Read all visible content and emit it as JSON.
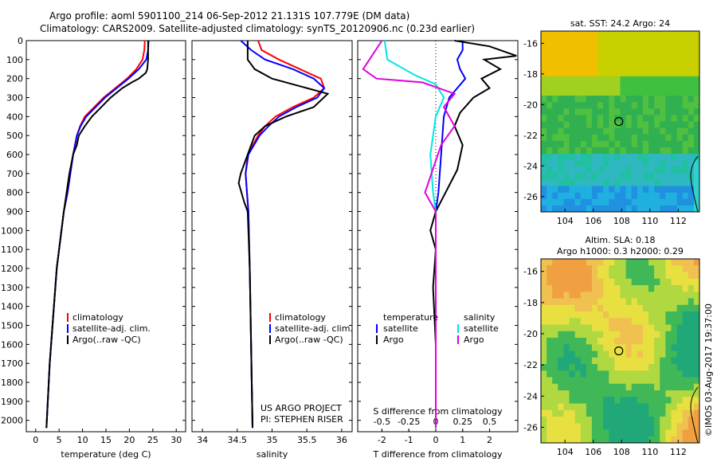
{
  "header": {
    "line1": "Argo profile: aoml 5901100_214 06-Sep-2012 21.131S 107.779E (DM data)",
    "line2": "Climatology: CARS2009. Satellite-adjusted climatology: synTS_20120906.nc (0.23d earlier)"
  },
  "panels": {
    "temperature": {
      "xlabel": "temperature (deg C)",
      "legend": [
        "climatology",
        "satellite-adj. clim.",
        "Argo(..raw -QC)"
      ]
    },
    "salinity": {
      "xlabel": "salinity",
      "legend": [
        "climatology",
        "satellite-adj. clim.",
        "Argo(..raw -QC)"
      ],
      "credit1": "US ARGO PROJECT",
      "credit2": "PI: STEPHEN RISER"
    },
    "difference": {
      "top_title": "S difference from climatology",
      "xlabel": "T difference from climatology",
      "legend_t_title": "temperature",
      "legend_s_title": "salinity",
      "legend_t": [
        "satellite",
        "Argo"
      ],
      "legend_s": [
        "satellite",
        "Argo"
      ]
    }
  },
  "maps": {
    "sst": {
      "title": "sat. SST: 24.2 Argo: 24"
    },
    "sla": {
      "title1": "Altim. SLA: 0.18",
      "title2": "Argo h1000: 0.3 h2000: 0.29"
    }
  },
  "stamp": "©IMOS 03-Aug-2017 19:37:00",
  "colors": {
    "climatology": "#ff0000",
    "satellite": "#0000ff",
    "argo": "#000000",
    "salinity_satellite": "#00e5e5",
    "salinity_argo": "#e000e0"
  },
  "chart_data": [
    {
      "type": "line",
      "name": "temperature",
      "xlabel": "temperature (deg C)",
      "ylabel": "",
      "xlim": [
        -2,
        32
      ],
      "ylim": [
        2060,
        0
      ],
      "xticks": [
        0,
        5,
        10,
        15,
        20,
        25,
        30
      ],
      "yticks": [
        0,
        100,
        200,
        300,
        400,
        500,
        600,
        700,
        800,
        900,
        1000,
        1100,
        1200,
        1300,
        1400,
        1500,
        1600,
        1700,
        1800,
        1900,
        2000
      ],
      "series": [
        {
          "name": "climatology",
          "color": "#ff0000",
          "x": [
            23.3,
            23.2,
            22.8,
            21.5,
            19.5,
            17.0,
            14.5,
            12.5,
            10.5,
            9.5,
            8.8,
            8.0,
            7.4,
            6.8,
            6.0,
            4.5,
            3.0,
            2.3
          ],
          "y": [
            0,
            50,
            100,
            150,
            200,
            250,
            300,
            350,
            400,
            450,
            500,
            600,
            700,
            800,
            900,
            1200,
            1700,
            2040
          ]
        },
        {
          "name": "satellite-adj. clim.",
          "color": "#0000ff",
          "x": [
            24.1,
            24.0,
            23.6,
            22.0,
            19.8,
            17.3,
            14.8,
            12.8,
            10.8,
            9.6,
            8.8,
            8.0,
            7.4,
            6.8,
            6.0,
            4.5,
            3.0,
            2.3
          ],
          "y": [
            0,
            50,
            100,
            150,
            200,
            250,
            300,
            350,
            400,
            450,
            500,
            600,
            700,
            800,
            900,
            1200,
            1700,
            2040
          ]
        },
        {
          "name": "Argo(..raw -QC)",
          "color": "#000000",
          "x": [
            24.0,
            24.0,
            24.0,
            23.8,
            23.5,
            22.0,
            20.5,
            18.5,
            16.0,
            14.0,
            12.0,
            10.5,
            9.2,
            8.8,
            8.0,
            7.2,
            6.6,
            6.0,
            4.5,
            3.0,
            2.3
          ],
          "y": [
            0,
            50,
            100,
            150,
            170,
            200,
            220,
            250,
            300,
            350,
            400,
            450,
            500,
            550,
            600,
            700,
            800,
            900,
            1200,
            1700,
            2040
          ]
        }
      ]
    },
    {
      "type": "line",
      "name": "salinity",
      "xlabel": "salinity",
      "ylabel": "",
      "xlim": [
        33.85,
        36.15
      ],
      "ylim": [
        2060,
        0
      ],
      "xticks": [
        34,
        34.5,
        35,
        35.5,
        36
      ],
      "series": [
        {
          "name": "climatology",
          "color": "#ff0000",
          "x": [
            34.8,
            34.85,
            35.1,
            35.4,
            35.7,
            35.75,
            35.6,
            35.3,
            35.05,
            34.9,
            34.8,
            34.65,
            34.62,
            34.64,
            34.66,
            34.68,
            34.72
          ],
          "y": [
            0,
            50,
            100,
            150,
            200,
            250,
            300,
            350,
            400,
            450,
            500,
            600,
            700,
            800,
            900,
            1200,
            2040
          ]
        },
        {
          "name": "satellite-adj. clim.",
          "color": "#0000ff",
          "x": [
            34.55,
            34.7,
            34.9,
            35.3,
            35.6,
            35.75,
            35.65,
            35.35,
            35.1,
            34.95,
            34.82,
            34.66,
            34.62,
            34.64,
            34.66,
            34.68,
            34.72
          ],
          "y": [
            0,
            50,
            100,
            150,
            200,
            250,
            300,
            350,
            400,
            450,
            500,
            600,
            700,
            800,
            900,
            1200,
            2040
          ]
        },
        {
          "name": "Argo(..raw -QC)",
          "color": "#000000",
          "x": [
            34.65,
            34.65,
            34.65,
            34.75,
            35.0,
            35.5,
            35.8,
            35.6,
            35.2,
            34.9,
            34.75,
            34.65,
            34.55,
            34.52,
            34.6,
            34.65,
            34.68,
            34.72
          ],
          "y": [
            0,
            50,
            100,
            150,
            200,
            250,
            280,
            350,
            400,
            450,
            500,
            600,
            700,
            750,
            850,
            900,
            1200,
            2040
          ]
        }
      ]
    },
    {
      "type": "line",
      "name": "difference",
      "xlabel": "T difference from climatology",
      "x2label": "S difference from climatology",
      "xlim": [
        -2.9,
        3.05
      ],
      "ylim": [
        2060,
        0
      ],
      "xticks": [
        -2,
        -1,
        0,
        1,
        2
      ],
      "x2ticks": [
        -0.5,
        -0.25,
        0,
        0.25,
        0.5
      ],
      "series": [
        {
          "name": "temperature satellite",
          "color": "#0000ff",
          "x": [
            1.0,
            1.0,
            0.8,
            0.9,
            1.1,
            0.8,
            0.5,
            0.3,
            0.2,
            0.1,
            0.0,
            0.0,
            0.0,
            0.0
          ],
          "y": [
            0,
            50,
            100,
            150,
            200,
            250,
            300,
            400,
            600,
            800,
            900,
            1200,
            1700,
            2040
          ]
        },
        {
          "name": "temperature Argo",
          "color": "#000000",
          "x": [
            0.7,
            2.0,
            3.0,
            1.8,
            2.4,
            1.7,
            2.0,
            1.4,
            0.9,
            0.7,
            1.0,
            0.8,
            0.0,
            -0.2,
            0.0,
            -0.1,
            0.0,
            0.0
          ],
          "y": [
            0,
            30,
            80,
            100,
            150,
            200,
            250,
            300,
            380,
            450,
            550,
            680,
            900,
            1000,
            1100,
            1300,
            1600,
            2040
          ]
        },
        {
          "name": "salinity satellite",
          "color": "#00e5e5",
          "x": [
            -1.9,
            -1.8,
            -0.8,
            0.0,
            0.3,
            0.0,
            -0.2,
            -0.1,
            0.0,
            0.0,
            0.0
          ],
          "y": [
            0,
            100,
            180,
            230,
            300,
            400,
            600,
            800,
            900,
            1200,
            2040
          ]
        },
        {
          "name": "salinity Argo",
          "color": "#e000e0",
          "x": [
            -2.0,
            -2.7,
            -2.2,
            -0.5,
            0.7,
            0.3,
            0.7,
            0.2,
            -0.4,
            0.0,
            0.0
          ],
          "y": [
            0,
            150,
            200,
            220,
            280,
            350,
            450,
            550,
            800,
            900,
            2040
          ]
        }
      ]
    }
  ],
  "map_axes": {
    "sst": {
      "xticks": [
        104,
        106,
        108,
        110,
        112
      ],
      "yticks": [
        -16,
        -18,
        -20,
        -22,
        -24,
        -26
      ],
      "marker": [
        107.8,
        -21.1
      ]
    },
    "sla": {
      "xticks": [
        104,
        106,
        108,
        110,
        112
      ],
      "yticks": [
        -16,
        -18,
        -20,
        -22,
        -24,
        -26
      ],
      "marker": [
        107.8,
        -21.1
      ]
    }
  }
}
